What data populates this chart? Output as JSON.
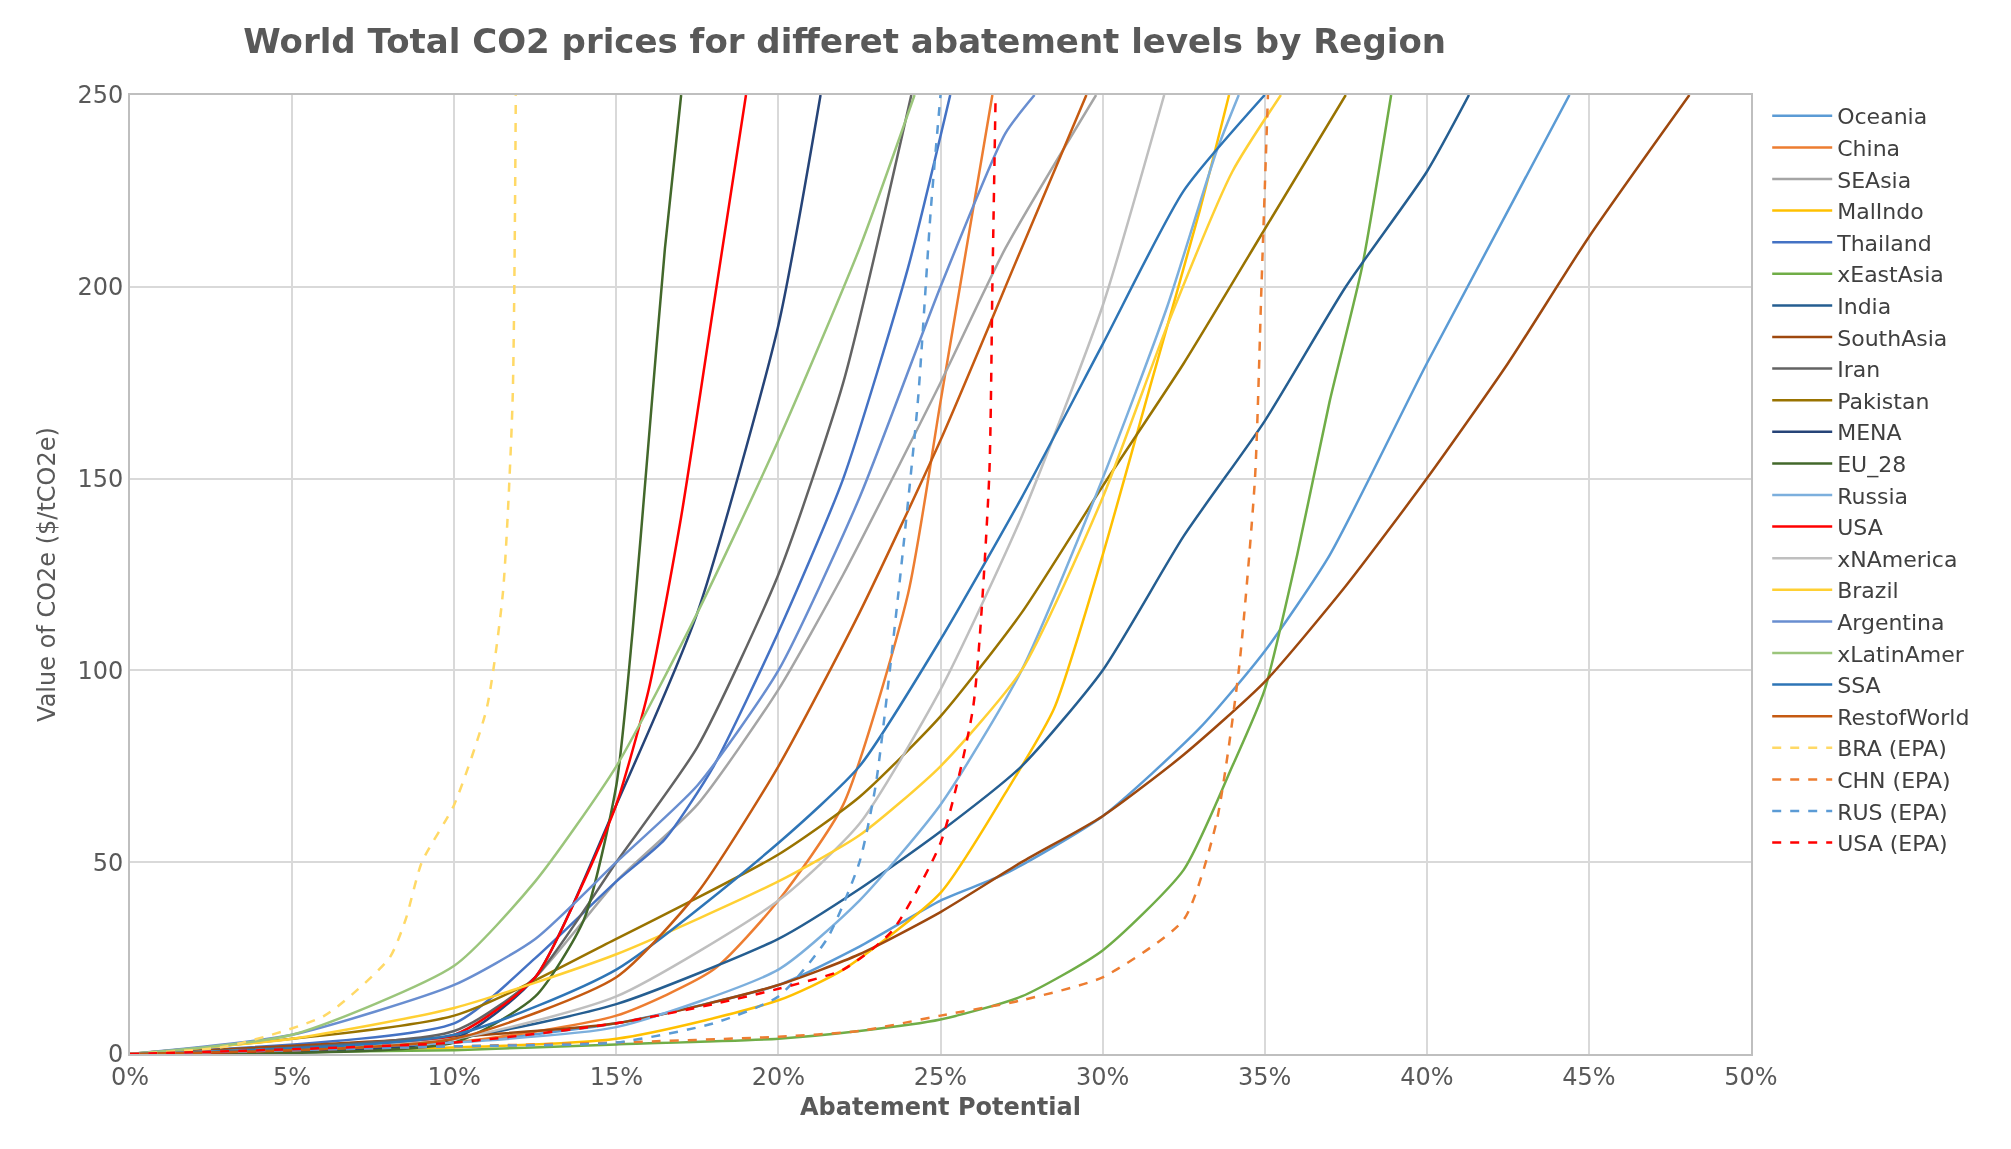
{
  "chart_data": {
    "type": "line",
    "title": "World Total CO2 prices for differet abatement levels by Region",
    "xlabel": "Abatement Potential",
    "ylabel": "Value of CO2e ($/tCO2e)",
    "xlim": [
      0,
      50
    ],
    "xticks": [
      {
        "value": 0,
        "label": "0%"
      },
      {
        "value": 5,
        "label": "5%"
      },
      {
        "value": 10,
        "label": "10%"
      },
      {
        "value": 15,
        "label": "15%"
      },
      {
        "value": 20,
        "label": "20%"
      },
      {
        "value": 25,
        "label": "25%"
      },
      {
        "value": 30,
        "label": "30%"
      },
      {
        "value": 35,
        "label": "35%"
      },
      {
        "value": 40,
        "label": "40%"
      },
      {
        "value": 45,
        "label": "45%"
      },
      {
        "value": 50,
        "label": "50%"
      }
    ],
    "ylim": [
      0,
      250
    ],
    "yticks": [
      0,
      50,
      100,
      150,
      200,
      250
    ],
    "grid": true,
    "legend": "right",
    "marker": "none",
    "series": [
      {
        "name": "Oceania",
        "color": "#5b9bd5",
        "x": [
          0,
          10,
          15,
          20,
          22.5,
          25,
          27,
          30,
          33,
          35,
          37,
          40,
          44.4
        ],
        "values": [
          0,
          3,
          8,
          18,
          28,
          40,
          47,
          62,
          85,
          105,
          130,
          180,
          250
        ]
      },
      {
        "name": "China",
        "color": "#ed7d31",
        "x": [
          0,
          10,
          15,
          18,
          20,
          22,
          24,
          25,
          26.6
        ],
        "values": [
          0,
          3,
          10,
          22,
          40,
          65,
          120,
          170,
          250
        ]
      },
      {
        "name": "SEAsia",
        "color": "#a5a5a5",
        "x": [
          0,
          10,
          12.5,
          15,
          17.5,
          20,
          22,
          25,
          27,
          29.8
        ],
        "values": [
          0,
          5,
          20,
          45,
          65,
          95,
          125,
          175,
          210,
          250
        ]
      },
      {
        "name": "MalIndo",
        "color": "#ffc000",
        "x": [
          0,
          15,
          20,
          22,
          25,
          27,
          28.5,
          30,
          31.5,
          33,
          33.9
        ],
        "values": [
          0,
          4,
          14,
          22,
          42,
          68,
          90,
          130,
          175,
          220,
          250
        ]
      },
      {
        "name": "Thailand",
        "color": "#4472c4",
        "x": [
          0,
          10,
          12.5,
          15,
          16.5,
          18,
          20,
          22,
          24,
          25.3
        ],
        "values": [
          0,
          8,
          25,
          45,
          56,
          75,
          110,
          150,
          205,
          250
        ]
      },
      {
        "name": "xEastAsia",
        "color": "#70ad47",
        "x": [
          0,
          10,
          15,
          20,
          22.5,
          25,
          27.5,
          30,
          32.5,
          34,
          35,
          36,
          37,
          38,
          38.9
        ],
        "values": [
          0,
          1,
          2.5,
          4,
          6,
          9,
          15,
          27,
          48,
          75,
          95,
          130,
          170,
          205,
          250
        ]
      },
      {
        "name": "India",
        "color": "#255e91",
        "x": [
          0,
          10,
          15,
          20,
          22.5,
          25,
          27.5,
          30,
          32.5,
          35,
          37.5,
          40,
          41.3
        ],
        "values": [
          0,
          4,
          13,
          30,
          43,
          58,
          75,
          100,
          135,
          165,
          200,
          230,
          250
        ]
      },
      {
        "name": "SouthAsia",
        "color": "#9e480e",
        "x": [
          0,
          15,
          20,
          22.5,
          25,
          27.5,
          30,
          32.5,
          35,
          37.5,
          40,
          42.5,
          45,
          48.1
        ],
        "values": [
          0,
          8,
          18,
          26,
          37,
          50,
          62,
          78,
          97,
          122,
          150,
          180,
          213,
          250
        ]
      },
      {
        "name": "Iran",
        "color": "#636363",
        "x": [
          0,
          10,
          12.5,
          15,
          17.5,
          20,
          22,
          24.1
        ],
        "values": [
          0,
          6,
          20,
          50,
          80,
          125,
          175,
          250
        ]
      },
      {
        "name": "Pakistan",
        "color": "#997300",
        "x": [
          0,
          10,
          15,
          20,
          22.5,
          25,
          27.5,
          30,
          32.5,
          35,
          37.5
        ],
        "values": [
          0,
          10,
          30,
          52,
          67,
          88,
          115,
          148,
          180,
          215,
          250
        ]
      },
      {
        "name": "MENA",
        "color": "#264478",
        "x": [
          0,
          10,
          12.5,
          15,
          17.5,
          20,
          21.3
        ],
        "values": [
          0,
          4,
          20,
          65,
          115,
          190,
          250
        ]
      },
      {
        "name": "EU_28",
        "color": "#43682b",
        "x": [
          0,
          10,
          12.5,
          14,
          15,
          15.5,
          16,
          16.5,
          17
        ],
        "values": [
          0,
          3,
          15,
          35,
          70,
          110,
          160,
          210,
          250
        ]
      },
      {
        "name": "Russia",
        "color": "#7cafdd",
        "x": [
          0,
          10,
          15,
          20,
          22.5,
          25,
          27.5,
          30,
          32,
          33.5,
          34.2
        ],
        "values": [
          0,
          3,
          7,
          22,
          40,
          65,
          100,
          150,
          195,
          235,
          250
        ]
      },
      {
        "name": "USA",
        "color": "#ff0000",
        "x": [
          0,
          10,
          12.5,
          14,
          15,
          16,
          17,
          18,
          19
        ],
        "values": [
          0,
          5,
          20,
          45,
          65,
          95,
          140,
          195,
          250
        ]
      },
      {
        "name": "xNAmerica",
        "color": "#bfbfbf",
        "x": [
          0,
          10,
          15,
          20,
          22.5,
          25,
          27.5,
          30,
          31.9
        ],
        "values": [
          0,
          4,
          15,
          40,
          60,
          95,
          140,
          195,
          250
        ]
      },
      {
        "name": "Brazil",
        "color": "#ffd033",
        "x": [
          0,
          5,
          10,
          15,
          20,
          22.5,
          25,
          27.5,
          30,
          32,
          34,
          35.5
        ],
        "values": [
          0,
          4,
          12,
          26,
          45,
          57,
          75,
          100,
          145,
          190,
          230,
          250
        ]
      },
      {
        "name": "Argentina",
        "color": "#698ed0",
        "x": [
          0,
          5,
          10,
          12.5,
          15,
          17.5,
          20,
          22.5,
          25,
          27,
          27.9
        ],
        "values": [
          0,
          5,
          18,
          30,
          50,
          70,
          100,
          145,
          200,
          240,
          250
        ]
      },
      {
        "name": "xLatinAmer",
        "color": "#9bc57b",
        "x": [
          0,
          5,
          10,
          12.5,
          15,
          17.5,
          20,
          22.5,
          24.2
        ],
        "values": [
          0,
          5,
          23,
          45,
          75,
          115,
          160,
          210,
          250
        ]
      },
      {
        "name": "SSA",
        "color": "#2e75b6",
        "x": [
          0,
          10,
          15,
          20,
          22.5,
          25,
          27.5,
          30,
          32.5,
          35
        ],
        "values": [
          0,
          5,
          22,
          55,
          75,
          108,
          145,
          185,
          225,
          250
        ]
      },
      {
        "name": "RestofWorld",
        "color": "#c55a11",
        "x": [
          0,
          10,
          15,
          17.5,
          20,
          22.5,
          25,
          27.5,
          29.5
        ],
        "values": [
          0,
          4,
          20,
          42,
          75,
          115,
          160,
          210,
          250
        ]
      },
      {
        "name": "BRA (EPA)",
        "color": "#ffd966",
        "line_style": "dashed",
        "x": [
          0,
          3,
          6,
          8,
          8.5,
          9,
          10,
          11,
          11.5,
          11.8,
          11.9
        ],
        "values": [
          0,
          2,
          10,
          25,
          35,
          50,
          65,
          90,
          120,
          170,
          250
        ]
      },
      {
        "name": "CHN (EPA)",
        "color": "#ed7d31",
        "line_style": "dashed",
        "x": [
          0,
          10,
          15,
          20,
          22.5,
          25,
          27.5,
          30,
          32.5,
          33.5,
          34.2,
          34.7,
          34.9,
          35.1
        ],
        "values": [
          0,
          2,
          3,
          4.5,
          6,
          10,
          14,
          20,
          35,
          60,
          100,
          150,
          200,
          250
        ]
      },
      {
        "name": "RUS (EPA)",
        "color": "#5b9bd5",
        "line_style": "dashed",
        "x": [
          0,
          10,
          15,
          18,
          20,
          21.5,
          22.5,
          23,
          23.7,
          24.3,
          24.7,
          25
        ],
        "values": [
          0,
          2,
          3,
          8,
          15,
          30,
          50,
          70,
          120,
          170,
          220,
          250
        ]
      },
      {
        "name": "USA (EPA)",
        "color": "#ff0000",
        "line_style": "dashed",
        "x": [
          0,
          10,
          15,
          18,
          20,
          22,
          23.5,
          25,
          26,
          26.5,
          26.6,
          26.7
        ],
        "values": [
          0,
          3,
          8,
          13,
          17,
          22,
          32,
          55,
          90,
          150,
          200,
          250
        ]
      }
    ]
  }
}
